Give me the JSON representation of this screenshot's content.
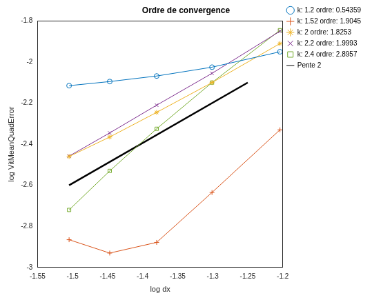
{
  "chart_data": {
    "type": "line",
    "title": "Ordre de convergence",
    "x_label": "log dx",
    "y_label": "log VitMeanQuadError",
    "x": [
      -1.505,
      -1.447,
      -1.38,
      -1.301,
      -1.204
    ],
    "series": [
      {
        "name": "k: 1.2 ordre: 0.54359",
        "color": "#0072BD",
        "marker": "o",
        "line_style": "solid",
        "values": [
          -2.115,
          -2.095,
          -2.068,
          -2.025,
          -1.95
        ]
      },
      {
        "name": "k: 1.52 ordre: 1.9045",
        "color": "#D95319",
        "marker": "+",
        "line_style": "solid",
        "values": [
          -2.865,
          -2.93,
          -2.878,
          -2.635,
          -2.33
        ]
      },
      {
        "name": "k: 2 ordre: 1.8253",
        "color": "#EDB120",
        "marker": "*",
        "line_style": "solid",
        "values": [
          -2.46,
          -2.365,
          -2.245,
          -2.1,
          -1.91
        ]
      },
      {
        "name": "k: 2.2 ordre: 1.9993",
        "color": "#7E2F8E",
        "marker": "x",
        "line_style": "solid",
        "values": [
          -2.458,
          -2.345,
          -2.21,
          -2.055,
          -1.85
        ]
      },
      {
        "name": "k: 2.4 ordre: 2.8957",
        "color": "#77AC30",
        "marker": "s",
        "line_style": "solid",
        "values": [
          -2.72,
          -2.53,
          -2.325,
          -2.1,
          -1.845
        ]
      },
      {
        "name": "Pente 2",
        "color": "#000000",
        "marker": "none",
        "line_style": "solid",
        "x": [
          -1.505,
          -1.25
        ],
        "values": [
          -2.6,
          -2.1
        ]
      }
    ],
    "xlim": [
      -1.55,
      -1.2
    ],
    "ylim": [
      -3,
      -1.8
    ],
    "xticks": [
      -1.55,
      -1.5,
      -1.45,
      -1.4,
      -1.35,
      -1.3,
      -1.25,
      -1.2
    ],
    "yticks": [
      -3,
      -2.8,
      -2.6,
      -2.4,
      -2.2,
      -2,
      -1.8
    ],
    "grid": false,
    "legend": "upper right"
  }
}
